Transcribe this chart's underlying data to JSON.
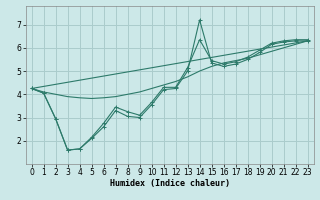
{
  "title": "",
  "xlabel": "Humidex (Indice chaleur)",
  "bg_color": "#cce8e8",
  "grid_color": "#aacccc",
  "line_color": "#2d7a6a",
  "xlim": [
    -0.5,
    23.5
  ],
  "ylim": [
    1.0,
    7.8
  ],
  "xticks": [
    0,
    1,
    2,
    3,
    4,
    5,
    6,
    7,
    8,
    9,
    10,
    11,
    12,
    13,
    14,
    15,
    16,
    17,
    18,
    19,
    20,
    21,
    22,
    23
  ],
  "yticks": [
    2,
    3,
    4,
    5,
    6,
    7
  ],
  "lines": [
    {
      "x": [
        0,
        1,
        2,
        3,
        4,
        5,
        6,
        7,
        8,
        9,
        10,
        11,
        12,
        13,
        14,
        15,
        16,
        17,
        18,
        19,
        20,
        21,
        22,
        23
      ],
      "y": [
        4.25,
        4.05,
        2.95,
        1.6,
        1.65,
        2.1,
        2.6,
        3.3,
        3.05,
        3.0,
        3.55,
        4.2,
        4.25,
        5.0,
        7.2,
        5.35,
        5.2,
        5.3,
        5.5,
        5.8,
        6.15,
        6.25,
        6.3,
        6.3
      ],
      "marker": true
    },
    {
      "x": [
        0,
        1,
        2,
        3,
        4,
        5,
        6,
        7,
        8,
        9,
        10,
        11,
        12,
        13,
        14,
        15,
        16,
        17,
        18,
        19,
        20,
        21,
        22,
        23
      ],
      "y": [
        4.25,
        4.05,
        2.95,
        1.6,
        1.65,
        2.15,
        2.75,
        3.45,
        3.25,
        3.1,
        3.65,
        4.3,
        4.3,
        5.15,
        6.35,
        5.45,
        5.3,
        5.4,
        5.6,
        5.9,
        6.2,
        6.3,
        6.35,
        6.35
      ],
      "marker": true
    },
    {
      "x": [
        0,
        1,
        2,
        3,
        4,
        5,
        6,
        7,
        8,
        9,
        10,
        11,
        12,
        13,
        14,
        15,
        16,
        17,
        18,
        19,
        20,
        21,
        22,
        23
      ],
      "y": [
        4.25,
        4.1,
        4.0,
        3.9,
        3.85,
        3.82,
        3.85,
        3.9,
        4.0,
        4.1,
        4.25,
        4.4,
        4.55,
        4.75,
        5.0,
        5.2,
        5.35,
        5.45,
        5.55,
        5.7,
        5.85,
        6.0,
        6.15,
        6.3
      ],
      "marker": false
    },
    {
      "x": [
        0,
        23
      ],
      "y": [
        4.25,
        6.3
      ],
      "marker": false
    }
  ]
}
